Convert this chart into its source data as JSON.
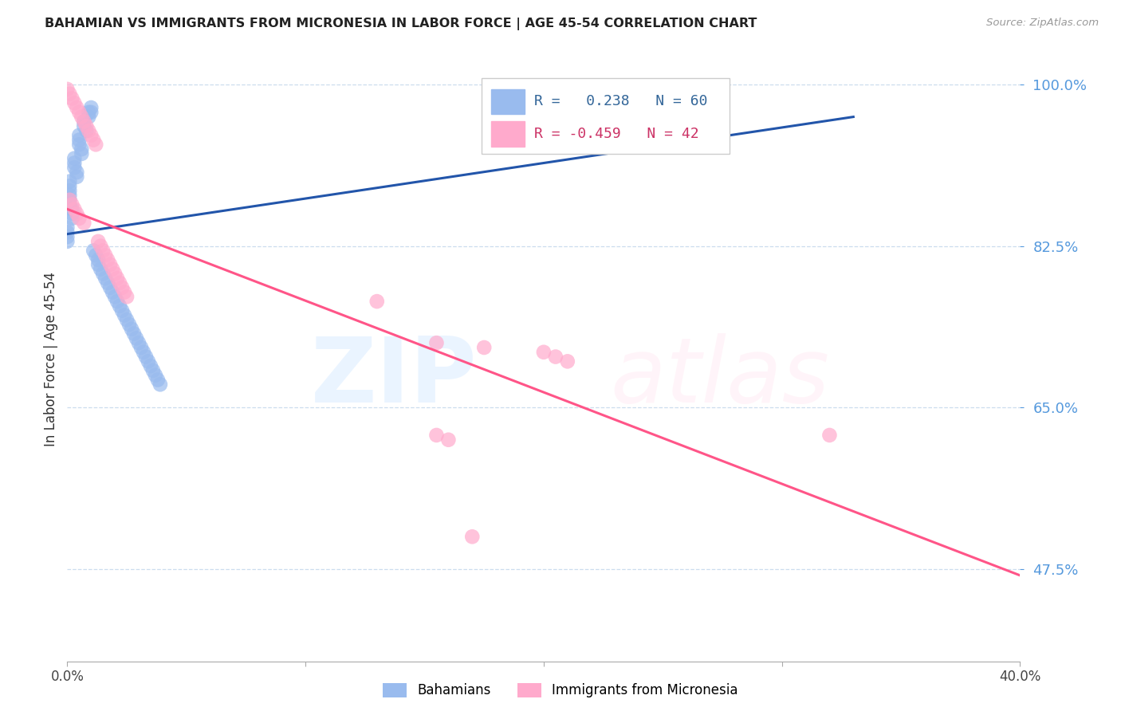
{
  "title": "BAHAMIAN VS IMMIGRANTS FROM MICRONESIA IN LABOR FORCE | AGE 45-54 CORRELATION CHART",
  "source": "Source: ZipAtlas.com",
  "ylabel": "In Labor Force | Age 45-54",
  "ytick_values": [
    0.475,
    0.65,
    0.825,
    1.0
  ],
  "xmin": 0.0,
  "xmax": 0.4,
  "ymin": 0.375,
  "ymax": 1.03,
  "blue_color": "#99BBEE",
  "pink_color": "#FFAACC",
  "blue_line_color": "#2255AA",
  "pink_line_color": "#FF5588",
  "legend_r_blue": " 0.238",
  "legend_n_blue": "60",
  "legend_r_pink": "-0.459",
  "legend_n_pink": "42",
  "blue_line": [
    [
      0.0,
      0.838
    ],
    [
      0.33,
      0.965
    ]
  ],
  "pink_line": [
    [
      0.0,
      0.865
    ],
    [
      0.4,
      0.468
    ]
  ],
  "blue_points_x": [
    0.0,
    0.0,
    0.0,
    0.0,
    0.001,
    0.001,
    0.001,
    0.001,
    0.001,
    0.001,
    0.002,
    0.002,
    0.002,
    0.003,
    0.003,
    0.003,
    0.004,
    0.004,
    0.005,
    0.005,
    0.005,
    0.006,
    0.006,
    0.007,
    0.007,
    0.008,
    0.009,
    0.009,
    0.01,
    0.01,
    0.011,
    0.012,
    0.013,
    0.013,
    0.014,
    0.015,
    0.016,
    0.017,
    0.018,
    0.019,
    0.02,
    0.021,
    0.022,
    0.023,
    0.024,
    0.025,
    0.026,
    0.027,
    0.028,
    0.029,
    0.03,
    0.031,
    0.032,
    0.033,
    0.034,
    0.035,
    0.036,
    0.037,
    0.038,
    0.039
  ],
  "blue_points_y": [
    0.845,
    0.84,
    0.835,
    0.83,
    0.895,
    0.89,
    0.885,
    0.88,
    0.875,
    0.87,
    0.865,
    0.86,
    0.855,
    0.92,
    0.915,
    0.91,
    0.905,
    0.9,
    0.945,
    0.94,
    0.935,
    0.93,
    0.925,
    0.96,
    0.955,
    0.95,
    0.97,
    0.965,
    0.975,
    0.97,
    0.82,
    0.815,
    0.81,
    0.805,
    0.8,
    0.795,
    0.79,
    0.785,
    0.78,
    0.775,
    0.77,
    0.765,
    0.76,
    0.755,
    0.75,
    0.745,
    0.74,
    0.735,
    0.73,
    0.725,
    0.72,
    0.715,
    0.71,
    0.705,
    0.7,
    0.695,
    0.69,
    0.685,
    0.68,
    0.675
  ],
  "pink_points_x": [
    0.0,
    0.001,
    0.001,
    0.002,
    0.002,
    0.003,
    0.003,
    0.004,
    0.004,
    0.005,
    0.005,
    0.006,
    0.007,
    0.007,
    0.008,
    0.009,
    0.01,
    0.011,
    0.012,
    0.013,
    0.014,
    0.015,
    0.016,
    0.017,
    0.018,
    0.019,
    0.02,
    0.021,
    0.022,
    0.023,
    0.024,
    0.025,
    0.13,
    0.155,
    0.175,
    0.2,
    0.205,
    0.21,
    0.155,
    0.16,
    0.32,
    0.17
  ],
  "pink_points_y": [
    0.995,
    0.99,
    0.875,
    0.985,
    0.87,
    0.98,
    0.865,
    0.975,
    0.86,
    0.97,
    0.855,
    0.965,
    0.96,
    0.85,
    0.955,
    0.95,
    0.945,
    0.94,
    0.935,
    0.83,
    0.825,
    0.82,
    0.815,
    0.81,
    0.805,
    0.8,
    0.795,
    0.79,
    0.785,
    0.78,
    0.775,
    0.77,
    0.765,
    0.72,
    0.715,
    0.71,
    0.705,
    0.7,
    0.62,
    0.615,
    0.62,
    0.51
  ]
}
